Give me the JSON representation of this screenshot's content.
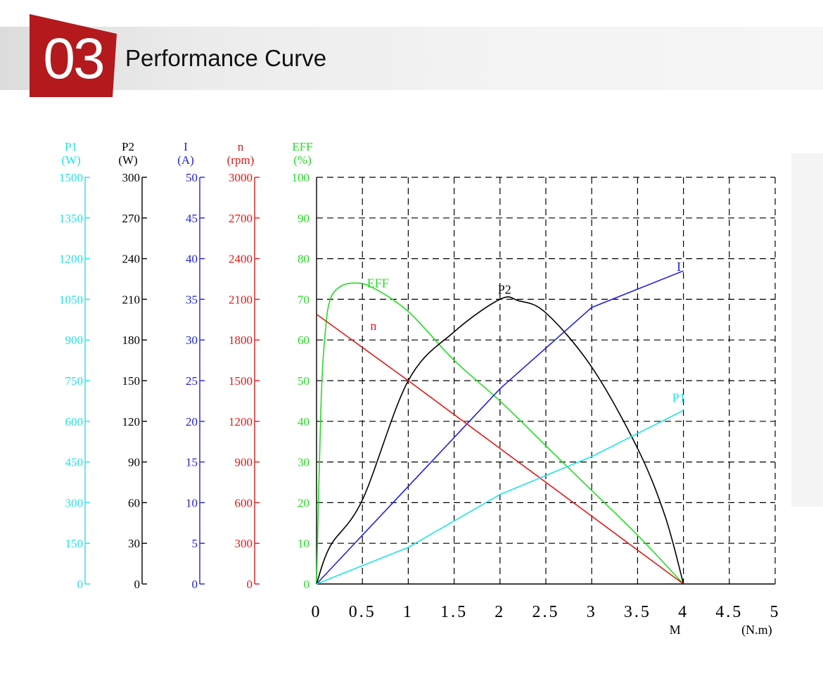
{
  "header": {
    "number": "03",
    "title": "Performance Curve"
  },
  "colors": {
    "badge": "#b3191d",
    "p1": "#1fe3ea",
    "p2": "#000000",
    "current": "#2020e0",
    "speed": "#e01818",
    "eff": "#22dd22"
  },
  "chart_data": {
    "type": "line",
    "title": "",
    "xlabel": "M",
    "xunit": "(N.m)",
    "x_ticks": [
      "0",
      "0.5",
      "1",
      "1.5",
      "2",
      "2.5",
      "3",
      "3.5",
      "4",
      "4.5",
      "5"
    ],
    "xlim": [
      0,
      5
    ],
    "grid": true,
    "y_axes": [
      {
        "id": "p1",
        "label": "P1",
        "unit": "(W)",
        "max": 1500,
        "ticks": [
          "0",
          "150",
          "300",
          "450",
          "600",
          "750",
          "900",
          "1050",
          "1200",
          "1350",
          "1500"
        ]
      },
      {
        "id": "p2",
        "label": "P2",
        "unit": "(W)",
        "max": 300,
        "ticks": [
          "0",
          "30",
          "60",
          "90",
          "120",
          "150",
          "180",
          "210",
          "240",
          "270",
          "300"
        ]
      },
      {
        "id": "current",
        "label": "I",
        "unit": "(A)",
        "max": 50,
        "ticks": [
          "0",
          "5",
          "10",
          "15",
          "20",
          "25",
          "30",
          "35",
          "40",
          "45",
          "50"
        ]
      },
      {
        "id": "speed",
        "label": "n",
        "unit": "(rpm)",
        "max": 3000,
        "ticks": [
          "0",
          "300",
          "600",
          "900",
          "1200",
          "1500",
          "1800",
          "2100",
          "2400",
          "2700",
          "3000"
        ]
      },
      {
        "id": "eff",
        "label": "EFF",
        "unit": "(%)",
        "max": 100,
        "ticks": [
          "0",
          "10",
          "20",
          "30",
          "40",
          "50",
          "60",
          "70",
          "80",
          "90",
          "100"
        ]
      }
    ],
    "series": [
      {
        "name": "EFF",
        "axis": "eff",
        "points": [
          [
            0,
            0
          ],
          [
            0.05,
            45
          ],
          [
            0.1,
            63
          ],
          [
            0.15,
            70
          ],
          [
            0.25,
            73
          ],
          [
            0.4,
            74
          ],
          [
            0.6,
            73
          ],
          [
            1.0,
            67
          ],
          [
            1.5,
            55
          ],
          [
            2.0,
            45
          ],
          [
            2.5,
            34
          ],
          [
            3.0,
            23
          ],
          [
            3.5,
            12
          ],
          [
            4.0,
            0
          ]
        ]
      },
      {
        "name": "P2",
        "axis": "p2",
        "points": [
          [
            0,
            0
          ],
          [
            0.15,
            28
          ],
          [
            0.5,
            62
          ],
          [
            1.0,
            150
          ],
          [
            1.5,
            186
          ],
          [
            2.0,
            210
          ],
          [
            2.2,
            209
          ],
          [
            2.5,
            200
          ],
          [
            3.0,
            160
          ],
          [
            3.5,
            100
          ],
          [
            3.8,
            50
          ],
          [
            4.0,
            0
          ]
        ]
      },
      {
        "name": "I",
        "axis": "current",
        "points": [
          [
            0,
            0
          ],
          [
            1,
            12
          ],
          [
            2,
            24
          ],
          [
            3,
            34
          ],
          [
            4,
            38.5
          ]
        ]
      },
      {
        "name": "n",
        "axis": "speed",
        "points": [
          [
            0,
            1990
          ],
          [
            1,
            1500
          ],
          [
            2,
            1000
          ],
          [
            3,
            500
          ],
          [
            4,
            0
          ]
        ]
      },
      {
        "name": "P1",
        "axis": "p1",
        "points": [
          [
            0,
            0
          ],
          [
            1,
            135
          ],
          [
            2,
            330
          ],
          [
            3,
            470
          ],
          [
            4,
            640
          ]
        ]
      }
    ]
  }
}
